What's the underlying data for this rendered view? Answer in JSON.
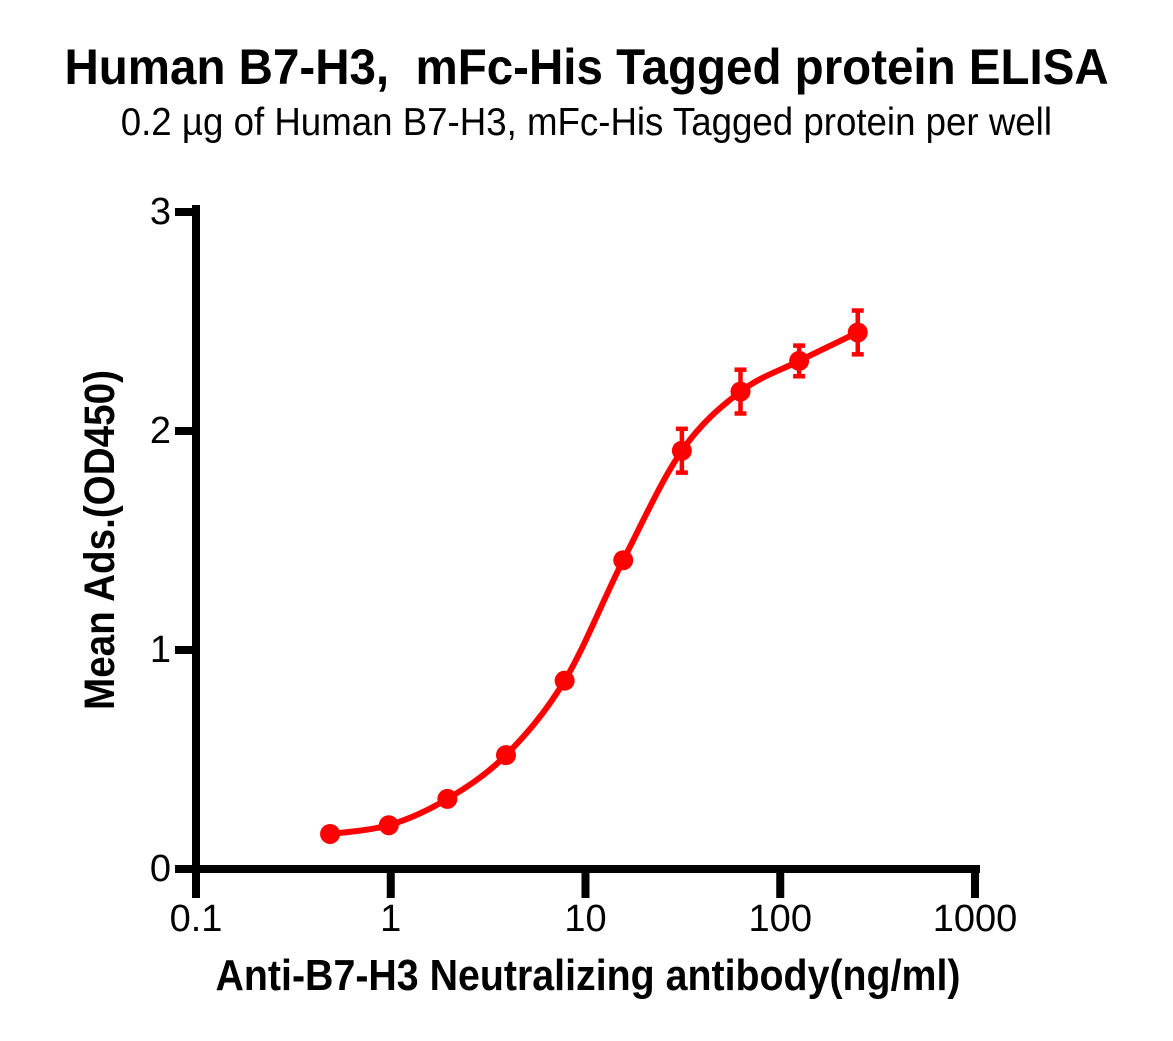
{
  "chart_data": {
    "type": "line",
    "title": "Human B7-H3,  mFc-His Tagged protein ELISA",
    "subtitle": "0.2 µg of Human B7-H3, mFc-His Tagged protein per well",
    "xlabel": "Anti-B7-H3 Neutralizing antibody(ng/ml)",
    "ylabel": "Mean Ads.(OD450)",
    "x_scale": "log10",
    "xlim": [
      0.1,
      1000
    ],
    "ylim": [
      0,
      3
    ],
    "x_ticks": [
      0.1,
      1,
      10,
      100,
      1000
    ],
    "x_tick_labels": [
      "0.1",
      "1",
      "10",
      "100",
      "1000"
    ],
    "y_ticks": [
      0,
      1,
      2,
      3
    ],
    "y_tick_labels": [
      "0",
      "1",
      "2",
      "3"
    ],
    "grid": false,
    "legend": false,
    "background_color": "#ffffff",
    "axis_color": "#000000",
    "series": [
      {
        "name": "Human B7-H3, mFc-His Tagged protein",
        "color": "#FF0000",
        "marker": "circle",
        "x": [
          0.488,
          0.977,
          1.953,
          3.906,
          7.813,
          15.625,
          31.25,
          62.5,
          125,
          250
        ],
        "y": [
          0.16,
          0.2,
          0.32,
          0.52,
          0.86,
          1.41,
          1.91,
          2.18,
          2.32,
          2.45
        ],
        "y_err": [
          0,
          0,
          0,
          0,
          0,
          0,
          0.1,
          0.1,
          0.07,
          0.1
        ]
      }
    ]
  }
}
